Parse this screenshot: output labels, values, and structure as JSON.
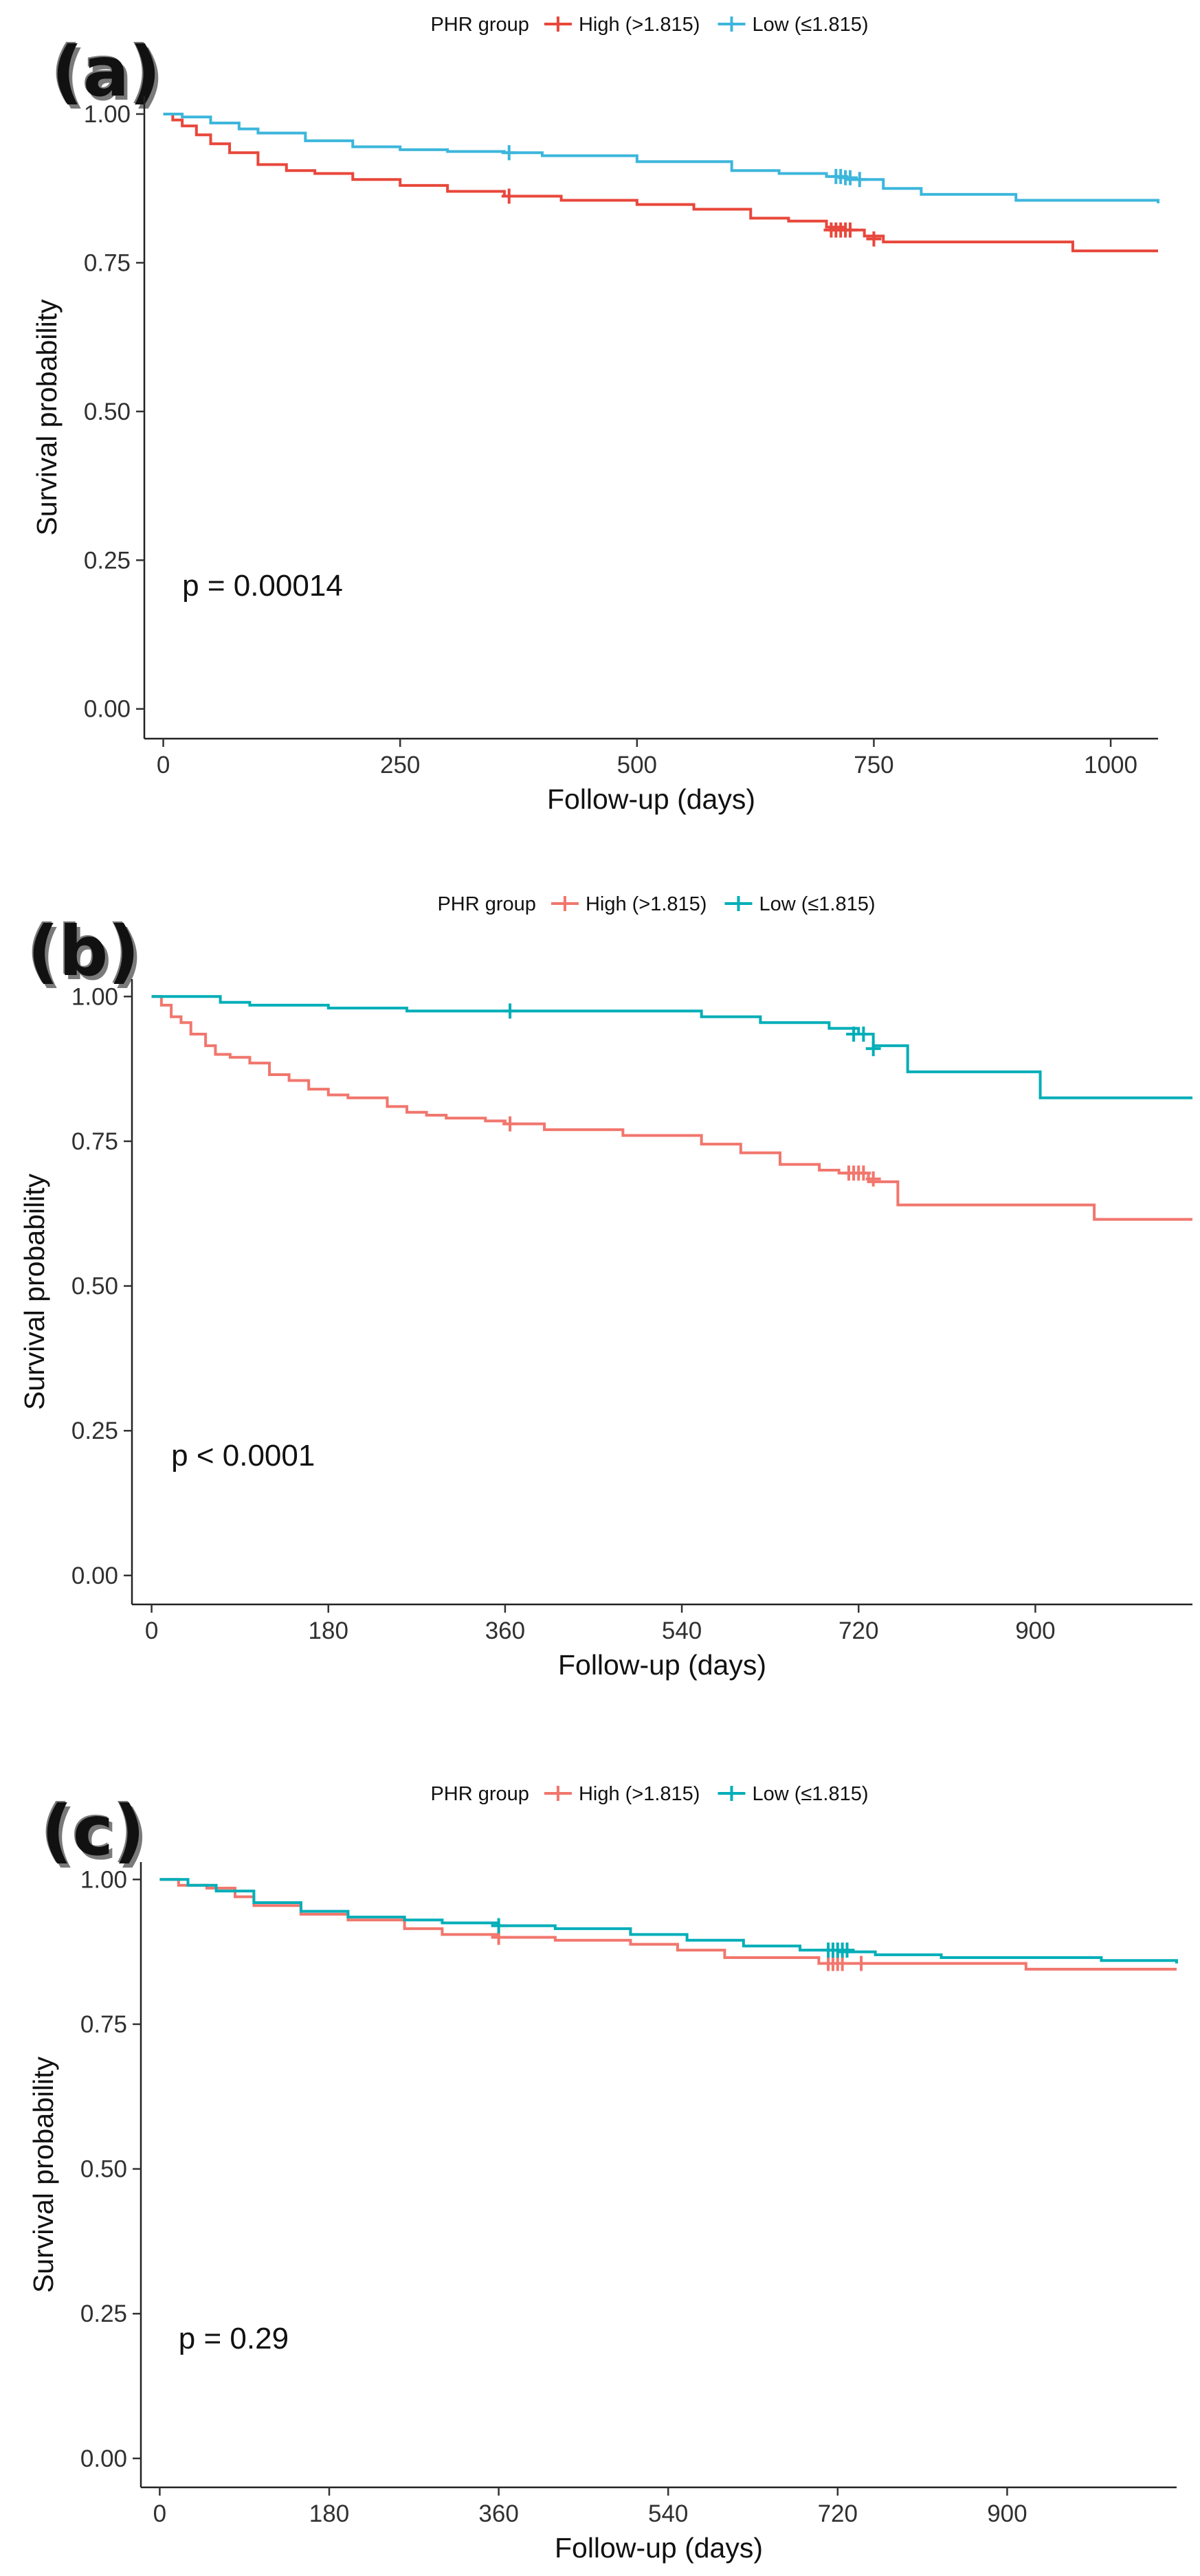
{
  "chart_data": [
    {
      "type": "line",
      "panel_label": "(a)",
      "xlabel": "Follow-up (days)",
      "ylabel": "Survival probability",
      "legend_title": "PHR group",
      "legend_position": "top",
      "pvalue_text": "p = 0.00014",
      "xlim": [
        -20,
        1050
      ],
      "ylim": [
        -0.05,
        1.03
      ],
      "x_ticks": [
        0,
        250,
        500,
        750,
        1000
      ],
      "x_tick_labels": [
        "0",
        "250",
        "500",
        "750",
        "1000"
      ],
      "y_ticks": [
        0,
        0.25,
        0.5,
        0.75,
        1
      ],
      "y_tick_labels": [
        "0.00",
        "0.25",
        "0.50",
        "0.75",
        "1.00"
      ],
      "grid": false,
      "series": [
        {
          "name": "High (>1.815)",
          "color": "#E8473B",
          "x": [
            0,
            10,
            20,
            35,
            50,
            70,
            100,
            130,
            160,
            200,
            250,
            300,
            360,
            420,
            500,
            560,
            620,
            660,
            700,
            720,
            740,
            760,
            800,
            960,
            1050
          ],
          "y": [
            1.0,
            0.99,
            0.98,
            0.965,
            0.95,
            0.935,
            0.915,
            0.905,
            0.9,
            0.89,
            0.88,
            0.87,
            0.862,
            0.855,
            0.848,
            0.84,
            0.825,
            0.82,
            0.81,
            0.805,
            0.795,
            0.785,
            0.785,
            0.77,
            0.77
          ],
          "censor_x": [
            365,
            705,
            710,
            715,
            720,
            725,
            750
          ],
          "censor_y": [
            0.862,
            0.805,
            0.805,
            0.805,
            0.805,
            0.805,
            0.79
          ]
        },
        {
          "name": "Low (≤1.815)",
          "color": "#3DB6DC",
          "x": [
            0,
            20,
            50,
            80,
            100,
            150,
            200,
            250,
            300,
            360,
            400,
            500,
            600,
            650,
            700,
            720,
            760,
            800,
            900,
            1000,
            1050
          ],
          "y": [
            1.0,
            0.995,
            0.985,
            0.975,
            0.968,
            0.955,
            0.945,
            0.94,
            0.937,
            0.935,
            0.93,
            0.92,
            0.905,
            0.9,
            0.895,
            0.89,
            0.875,
            0.865,
            0.855,
            0.855,
            0.85
          ],
          "censor_x": [
            365,
            710,
            715,
            720,
            725,
            735
          ],
          "censor_y": [
            0.935,
            0.895,
            0.895,
            0.893,
            0.893,
            0.89
          ]
        }
      ]
    },
    {
      "type": "line",
      "panel_label": "(b)",
      "xlabel": "Follow-up (days)",
      "ylabel": "Survival probability",
      "legend_title": "PHR group",
      "legend_position": "top",
      "pvalue_text": "p < 0.0001",
      "xlim": [
        -20,
        1060
      ],
      "ylim": [
        -0.05,
        1.03
      ],
      "x_ticks": [
        0,
        180,
        360,
        540,
        720,
        900
      ],
      "x_tick_labels": [
        "0",
        "180",
        "360",
        "540",
        "720",
        "900"
      ],
      "y_ticks": [
        0,
        0.25,
        0.5,
        0.75,
        1
      ],
      "y_tick_labels": [
        "0.00",
        "0.25",
        "0.50",
        "0.75",
        "1.00"
      ],
      "grid": false,
      "series": [
        {
          "name": "High (>1.815)",
          "color": "#F1766D",
          "x": [
            0,
            10,
            20,
            30,
            40,
            55,
            65,
            80,
            100,
            120,
            140,
            160,
            180,
            200,
            240,
            260,
            280,
            300,
            340,
            360,
            400,
            480,
            560,
            600,
            640,
            680,
            700,
            730,
            760,
            800,
            960,
            1060
          ],
          "y": [
            1.0,
            0.985,
            0.965,
            0.955,
            0.935,
            0.915,
            0.9,
            0.895,
            0.885,
            0.865,
            0.855,
            0.84,
            0.83,
            0.825,
            0.81,
            0.8,
            0.795,
            0.79,
            0.785,
            0.78,
            0.77,
            0.76,
            0.745,
            0.73,
            0.71,
            0.7,
            0.695,
            0.68,
            0.64,
            0.64,
            0.615,
            0.615
          ],
          "censor_x": [
            365,
            710,
            715,
            720,
            725,
            735
          ],
          "censor_y": [
            0.78,
            0.695,
            0.695,
            0.695,
            0.695,
            0.685
          ]
        },
        {
          "name": "Low (≤1.815)",
          "color": "#00AEB8",
          "x": [
            0,
            70,
            100,
            180,
            260,
            400,
            560,
            620,
            690,
            720,
            735,
            770,
            800,
            905,
            1060
          ],
          "y": [
            1.0,
            0.99,
            0.985,
            0.98,
            0.975,
            0.975,
            0.965,
            0.955,
            0.945,
            0.935,
            0.915,
            0.87,
            0.87,
            0.825,
            0.825
          ],
          "censor_x": [
            365,
            715,
            725,
            735
          ],
          "censor_y": [
            0.975,
            0.935,
            0.935,
            0.91
          ]
        }
      ]
    },
    {
      "type": "line",
      "panel_label": "(c)",
      "xlabel": "Follow-up (days)",
      "ylabel": "Survival probability",
      "legend_title": "PHR group",
      "legend_position": "top",
      "pvalue_text": "p = 0.29",
      "xlim": [
        -20,
        1080
      ],
      "ylim": [
        -0.05,
        1.03
      ],
      "x_ticks": [
        0,
        180,
        360,
        540,
        720,
        900
      ],
      "x_tick_labels": [
        "0",
        "180",
        "360",
        "540",
        "720",
        "900"
      ],
      "y_ticks": [
        0,
        0.25,
        0.5,
        0.75,
        1
      ],
      "y_tick_labels": [
        "0.00",
        "0.25",
        "0.50",
        "0.75",
        "1.00"
      ],
      "grid": false,
      "series": [
        {
          "name": "High (>1.815)",
          "color": "#F1766D",
          "x": [
            0,
            20,
            50,
            80,
            100,
            150,
            200,
            260,
            300,
            360,
            420,
            500,
            550,
            600,
            700,
            720,
            760,
            860,
            920,
            1000,
            1080
          ],
          "y": [
            1.0,
            0.99,
            0.985,
            0.97,
            0.955,
            0.94,
            0.93,
            0.915,
            0.905,
            0.9,
            0.895,
            0.888,
            0.878,
            0.865,
            0.855,
            0.855,
            0.855,
            0.855,
            0.845,
            0.845,
            0.845
          ],
          "censor_x": [
            360,
            710,
            715,
            720,
            725,
            745
          ],
          "censor_y": [
            0.9,
            0.855,
            0.855,
            0.855,
            0.855,
            0.855
          ]
        },
        {
          "name": "Low (≤1.815)",
          "color": "#00AEB8",
          "x": [
            0,
            30,
            60,
            100,
            150,
            200,
            260,
            300,
            360,
            420,
            500,
            560,
            620,
            680,
            720,
            760,
            830,
            900,
            1000,
            1080
          ],
          "y": [
            1.0,
            0.99,
            0.98,
            0.96,
            0.945,
            0.935,
            0.93,
            0.925,
            0.92,
            0.915,
            0.905,
            0.895,
            0.885,
            0.878,
            0.875,
            0.87,
            0.865,
            0.865,
            0.86,
            0.855
          ],
          "censor_x": [
            360,
            710,
            715,
            720,
            725,
            730
          ],
          "censor_y": [
            0.92,
            0.878,
            0.878,
            0.878,
            0.878,
            0.878
          ]
        }
      ]
    }
  ]
}
